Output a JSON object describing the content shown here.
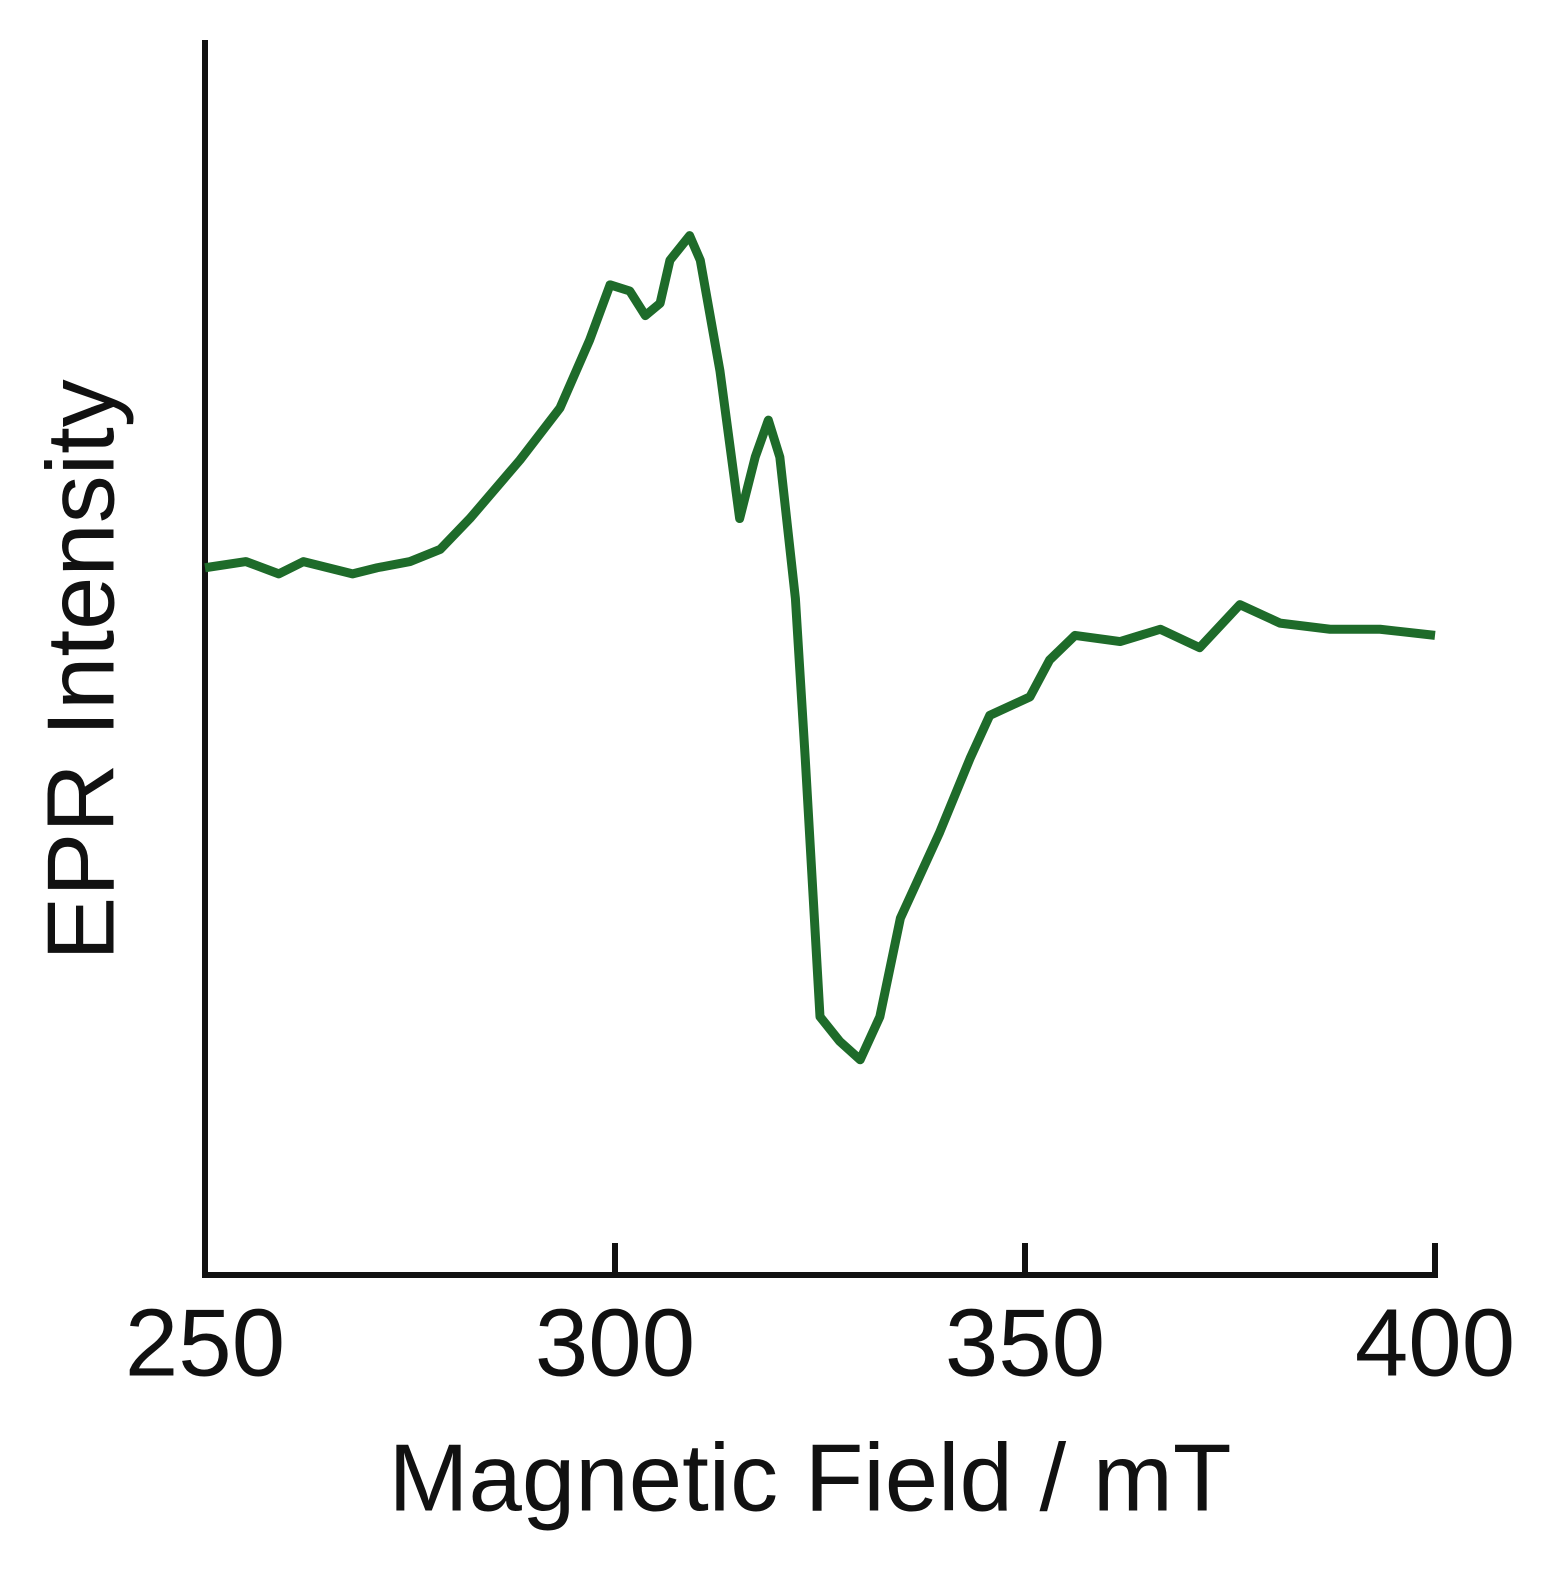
{
  "chart_data": {
    "type": "line",
    "xlabel": "Magnetic Field / mT",
    "ylabel": "EPR Intensity",
    "xlim": [
      250,
      400
    ],
    "xticks": [
      250,
      300,
      350,
      400
    ],
    "ylim": [
      -100,
      100
    ],
    "series": [
      {
        "color": "#1e6b2a",
        "x": [
          250,
          255,
          259,
          262,
          265,
          268,
          271,
          275,
          278.7,
          282.3,
          288.4,
          293.3,
          296.9,
          299.4,
          301.8,
          303.7,
          305.5,
          306.7,
          309.1,
          310.4,
          312.8,
          315.2,
          317.1,
          318.7,
          320.1,
          322,
          323.2,
          325,
          327.4,
          329.9,
          332.3,
          334.8,
          339.6,
          343.3,
          345.7,
          350.6,
          353,
          356.1,
          361.6,
          366.5,
          371.3,
          376.2,
          381.1,
          387.2,
          393.3,
          400
        ],
        "values": [
          15,
          16,
          14,
          16,
          15,
          14,
          15,
          16,
          18,
          23,
          32.5,
          41,
          52,
          61,
          60,
          56,
          58,
          65,
          69,
          65,
          47,
          23,
          33,
          39,
          33,
          10,
          -16,
          -58,
          -62,
          -65,
          -58,
          -42,
          -28,
          -16,
          -9,
          -6,
          0,
          4,
          3,
          5,
          2,
          9,
          6,
          5,
          5,
          4
        ]
      }
    ]
  }
}
